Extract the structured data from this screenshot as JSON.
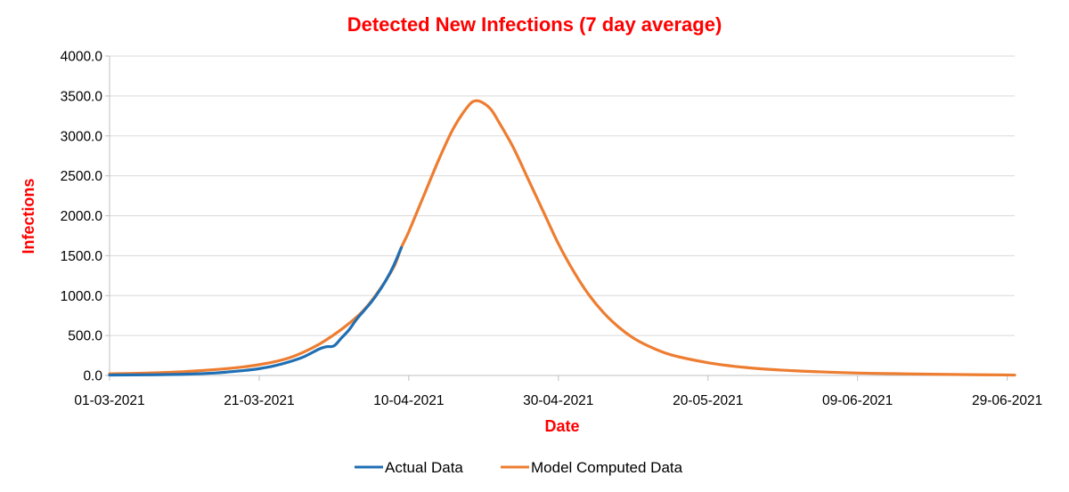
{
  "chart_data": {
    "type": "line",
    "title": "Detected New Infections (7 day average)",
    "xlabel": "Date",
    "ylabel": "Infections",
    "ylim": [
      0,
      4000
    ],
    "y_ticks": [
      "0.0",
      "500.0",
      "1000.0",
      "1500.0",
      "2000.0",
      "2500.0",
      "3000.0",
      "3500.0",
      "4000.0"
    ],
    "x_ticks": [
      "01-03-2021",
      "21-03-2021",
      "10-04-2021",
      "30-04-2021",
      "20-05-2021",
      "09-06-2021",
      "29-06-2021"
    ],
    "x_tick_days": [
      0,
      20,
      40,
      60,
      80,
      100,
      120
    ],
    "xlim_days": [
      0,
      121
    ],
    "series": [
      {
        "name": "Actual Data",
        "color": "#1F6FB4",
        "x_days": [
          0,
          5,
          10,
          14,
          16,
          18,
          20,
          22,
          24,
          26,
          28,
          29,
          30,
          31,
          32,
          33,
          34,
          35,
          36,
          37,
          38,
          39
        ],
        "values": [
          5,
          8,
          15,
          30,
          45,
          62,
          85,
          120,
          170,
          235,
          330,
          360,
          370,
          470,
          570,
          700,
          810,
          920,
          1050,
          1200,
          1380,
          1600
        ]
      },
      {
        "name": "Model Computed Data",
        "color": "#ED7D31",
        "x_days": [
          0,
          5,
          10,
          15,
          18,
          20,
          22,
          24,
          26,
          28,
          30,
          32,
          34,
          36,
          38,
          39,
          40,
          42,
          44,
          46,
          48,
          49,
          50,
          51,
          52,
          54,
          56,
          58,
          60,
          62,
          64,
          66,
          68,
          70,
          72,
          75,
          80,
          85,
          90,
          95,
          100,
          105,
          110,
          115,
          120,
          121
        ],
        "values": [
          20,
          30,
          48,
          80,
          108,
          135,
          170,
          220,
          295,
          390,
          510,
          650,
          820,
          1060,
          1360,
          1600,
          1800,
          2250,
          2700,
          3100,
          3380,
          3440,
          3410,
          3330,
          3180,
          2850,
          2450,
          2050,
          1650,
          1310,
          1020,
          790,
          610,
          470,
          370,
          260,
          160,
          100,
          66,
          45,
          30,
          22,
          15,
          10,
          6,
          5
        ]
      }
    ],
    "legend_position": "bottom"
  },
  "colors": {
    "title": "#FF0000",
    "axis_title": "#FF0000",
    "gridline": "#D9D9D9",
    "axis_line": "#BFBFBF"
  }
}
